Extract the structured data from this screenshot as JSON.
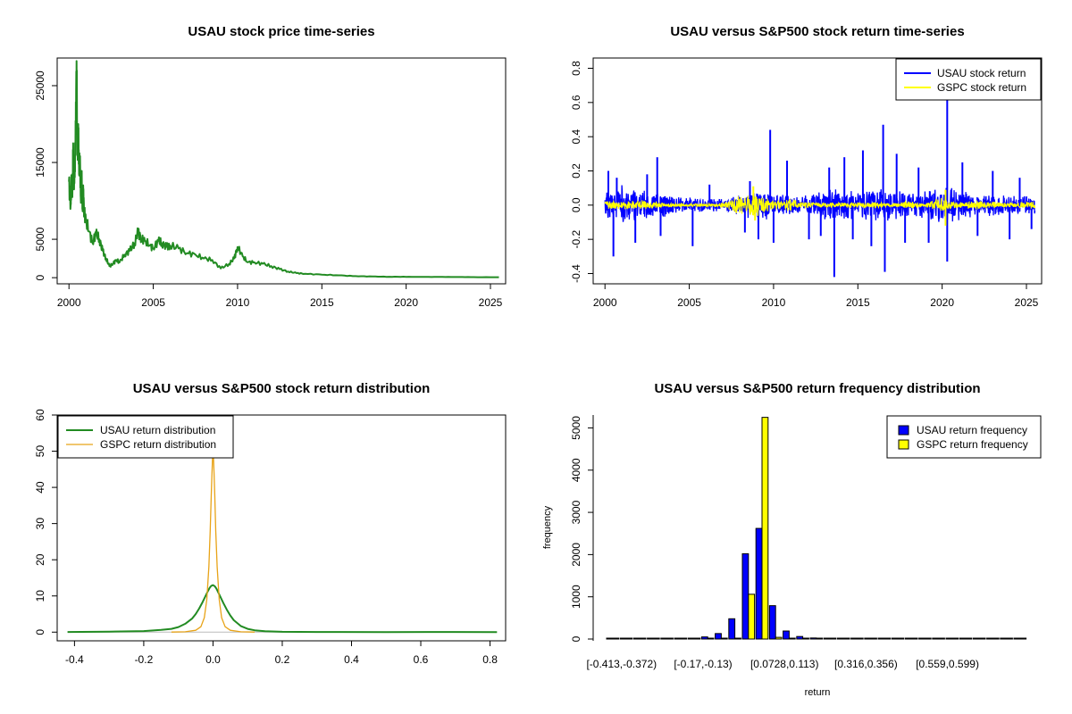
{
  "chart_data": [
    {
      "id": "price",
      "type": "line",
      "title": "USAU stock price time-series",
      "xlabel": "",
      "ylabel": "",
      "xlim": [
        1999.3,
        2025.9
      ],
      "ylim": [
        -800,
        28600
      ],
      "x_ticks": [
        2000,
        2005,
        2010,
        2015,
        2020,
        2025
      ],
      "x_tick_labels": [
        "2000",
        "2005",
        "2010",
        "2015",
        "2020",
        "2025"
      ],
      "y_ticks": [
        0,
        5000,
        15000,
        25000
      ],
      "y_tick_labels": [
        "0",
        "5000",
        "15000",
        "25000"
      ],
      "grid": false,
      "series": [
        {
          "color": "#228B22",
          "x": [
            2000.0,
            2000.1,
            2000.15,
            2000.2,
            2000.25,
            2000.3,
            2000.35,
            2000.4,
            2000.45,
            2000.5,
            2000.55,
            2000.6,
            2000.65,
            2000.7,
            2000.75,
            2000.8,
            2000.85,
            2000.9,
            2001.0,
            2001.2,
            2001.4,
            2001.6,
            2001.8,
            2002.0,
            2002.2,
            2002.4,
            2002.6,
            2002.8,
            2003.0,
            2003.3,
            2003.6,
            2003.9,
            2004.1,
            2004.3,
            2004.5,
            2004.8,
            2005.0,
            2005.3,
            2005.5,
            2005.8,
            2006.0,
            2006.5,
            2007.0,
            2007.5,
            2008.0,
            2008.5,
            2009.0,
            2009.5,
            2009.8,
            2010.0,
            2010.3,
            2010.6,
            2011.0,
            2011.5,
            2012.0,
            2012.5,
            2013.0,
            2013.5,
            2014.0,
            2015.0,
            2016.0,
            2017.0,
            2018.0,
            2019.0,
            2020.0,
            2021.0,
            2022.0,
            2023.0,
            2024.0,
            2025.5
          ],
          "y": [
            12500,
            9500,
            13000,
            10500,
            17500,
            11500,
            15000,
            19000,
            28200,
            16000,
            20000,
            13500,
            15500,
            10500,
            13000,
            9500,
            11000,
            8500,
            7500,
            6000,
            4500,
            5800,
            5000,
            3500,
            2500,
            1500,
            1800,
            2300,
            2000,
            3000,
            3500,
            4500,
            6000,
            5000,
            4800,
            4200,
            3800,
            4800,
            4500,
            4000,
            4200,
            3800,
            3200,
            3000,
            2500,
            2300,
            1200,
            1800,
            2500,
            4000,
            2800,
            2000,
            2000,
            1800,
            1500,
            1100,
            800,
            600,
            500,
            400,
            300,
            200,
            150,
            120,
            110,
            100,
            90,
            80,
            70,
            60
          ]
        }
      ]
    },
    {
      "id": "returns",
      "type": "line",
      "title": "USAU versus S&P500 stock return time-series",
      "xlabel": "",
      "ylabel": "",
      "xlim": [
        1999.3,
        2025.9
      ],
      "ylim": [
        -0.46,
        0.86
      ],
      "x_ticks": [
        2000,
        2005,
        2010,
        2015,
        2020,
        2025
      ],
      "x_tick_labels": [
        "2000",
        "2005",
        "2010",
        "2015",
        "2020",
        "2025"
      ],
      "y_ticks": [
        -0.4,
        -0.2,
        0.0,
        0.2,
        0.4,
        0.6,
        0.8
      ],
      "y_tick_labels": [
        "-0.4",
        "-0.2",
        "0.0",
        "0.2",
        "0.4",
        "0.6",
        "0.8"
      ],
      "grid": false,
      "legend_position": "top-right",
      "series": [
        {
          "name": "USAU stock return",
          "color": "#0000FF",
          "band": [
            [
              2000,
              0.1
            ],
            [
              2001,
              0.13
            ],
            [
              2002,
              0.09
            ],
            [
              2003,
              0.08
            ],
            [
              2004,
              0.07
            ],
            [
              2005,
              0.05
            ],
            [
              2006,
              0.04
            ],
            [
              2007,
              0.04
            ],
            [
              2008,
              0.07
            ],
            [
              2009,
              0.1
            ],
            [
              2010,
              0.08
            ],
            [
              2011,
              0.06
            ],
            [
              2012,
              0.06
            ],
            [
              2013,
              0.1
            ],
            [
              2014,
              0.1
            ],
            [
              2015,
              0.09
            ],
            [
              2016,
              0.11
            ],
            [
              2017,
              0.1
            ],
            [
              2018,
              0.08
            ],
            [
              2019,
              0.09
            ],
            [
              2020,
              0.11
            ],
            [
              2021,
              0.1
            ],
            [
              2022,
              0.07
            ],
            [
              2023,
              0.07
            ],
            [
              2024,
              0.06
            ],
            [
              2025.5,
              0.06
            ]
          ],
          "spikes": [
            [
              2000.2,
              0.2
            ],
            [
              2000.5,
              -0.3
            ],
            [
              2000.7,
              0.16
            ],
            [
              2001.8,
              -0.22
            ],
            [
              2002.5,
              0.18
            ],
            [
              2003.1,
              0.28
            ],
            [
              2003.3,
              -0.18
            ],
            [
              2005.2,
              -0.24
            ],
            [
              2006.2,
              0.12
            ],
            [
              2008.3,
              -0.16
            ],
            [
              2008.6,
              0.14
            ],
            [
              2009.1,
              -0.2
            ],
            [
              2009.8,
              0.44
            ],
            [
              2010.0,
              -0.22
            ],
            [
              2010.8,
              0.26
            ],
            [
              2012.1,
              -0.2
            ],
            [
              2012.8,
              -0.18
            ],
            [
              2013.3,
              0.22
            ],
            [
              2013.6,
              -0.42
            ],
            [
              2014.2,
              0.28
            ],
            [
              2014.7,
              -0.2
            ],
            [
              2015.3,
              0.32
            ],
            [
              2015.8,
              -0.24
            ],
            [
              2016.5,
              0.47
            ],
            [
              2016.6,
              -0.39
            ],
            [
              2017.3,
              0.3
            ],
            [
              2017.8,
              -0.22
            ],
            [
              2018.6,
              0.22
            ],
            [
              2019.2,
              -0.22
            ],
            [
              2020.3,
              0.62
            ],
            [
              2020.3,
              -0.33
            ],
            [
              2021.2,
              0.25
            ],
            [
              2022.1,
              -0.18
            ],
            [
              2023.0,
              0.2
            ],
            [
              2024.0,
              -0.2
            ],
            [
              2024.6,
              0.16
            ],
            [
              2025.3,
              -0.14
            ]
          ]
        },
        {
          "name": "GSPC stock return",
          "color": "#FFFF00",
          "band": [
            [
              2000,
              0.025
            ],
            [
              2001,
              0.03
            ],
            [
              2002,
              0.035
            ],
            [
              2003,
              0.02
            ],
            [
              2004,
              0.012
            ],
            [
              2005,
              0.01
            ],
            [
              2006,
              0.01
            ],
            [
              2007,
              0.015
            ],
            [
              2008,
              0.06
            ],
            [
              2008.9,
              0.08
            ],
            [
              2009.5,
              0.05
            ],
            [
              2010,
              0.03
            ],
            [
              2011,
              0.04
            ],
            [
              2012,
              0.02
            ],
            [
              2013,
              0.015
            ],
            [
              2015,
              0.018
            ],
            [
              2016,
              0.02
            ],
            [
              2017,
              0.01
            ],
            [
              2018,
              0.025
            ],
            [
              2019,
              0.015
            ],
            [
              2020,
              0.05
            ],
            [
              2020.5,
              0.03
            ],
            [
              2021,
              0.018
            ],
            [
              2022,
              0.03
            ],
            [
              2023,
              0.02
            ],
            [
              2024,
              0.015
            ],
            [
              2025.5,
              0.025
            ]
          ],
          "spikes": [
            [
              2008.8,
              0.11
            ],
            [
              2008.9,
              -0.09
            ],
            [
              2020.2,
              0.09
            ],
            [
              2020.2,
              -0.12
            ]
          ]
        }
      ]
    },
    {
      "id": "density",
      "type": "line",
      "title": "USAU versus S&P500 stock return distribution",
      "xlabel": "",
      "ylabel": "",
      "xlim": [
        -0.45,
        0.845
      ],
      "ylim": [
        -2.4,
        60
      ],
      "x_ticks": [
        -0.4,
        -0.2,
        0.0,
        0.2,
        0.4,
        0.6,
        0.8
      ],
      "x_tick_labels": [
        "-0.4",
        "-0.2",
        "0.0",
        "0.2",
        "0.4",
        "0.6",
        "0.8"
      ],
      "y_ticks": [
        0,
        10,
        20,
        30,
        40,
        50,
        60
      ],
      "y_tick_labels": [
        "0",
        "10",
        "20",
        "30",
        "40",
        "50",
        "60"
      ],
      "grid": false,
      "legend_position": "top-left",
      "series": [
        {
          "name": "USAU return distribution",
          "color": "#228B22",
          "x": [
            -0.42,
            -0.3,
            -0.2,
            -0.15,
            -0.12,
            -0.1,
            -0.08,
            -0.06,
            -0.05,
            -0.04,
            -0.03,
            -0.02,
            -0.015,
            -0.01,
            -0.005,
            0.0,
            0.005,
            0.01,
            0.015,
            0.02,
            0.03,
            0.04,
            0.05,
            0.06,
            0.08,
            0.1,
            0.12,
            0.15,
            0.2,
            0.3,
            0.5,
            0.62,
            0.82
          ],
          "y": [
            0.05,
            0.15,
            0.3,
            0.6,
            0.9,
            1.4,
            2.3,
            3.8,
            5.0,
            6.5,
            8.3,
            10.3,
            11.3,
            12.2,
            12.8,
            13.0,
            12.7,
            12.0,
            11.0,
            10.0,
            8.0,
            6.2,
            4.6,
            3.3,
            1.7,
            0.9,
            0.5,
            0.25,
            0.1,
            0.05,
            0.02,
            0.05,
            0.02
          ]
        },
        {
          "name": "GSPC return distribution",
          "color": "#E8A317",
          "x": [
            -0.12,
            -0.08,
            -0.05,
            -0.035,
            -0.025,
            -0.018,
            -0.012,
            -0.008,
            -0.005,
            -0.003,
            -0.0015,
            0.0,
            0.0015,
            0.003,
            0.005,
            0.008,
            0.012,
            0.018,
            0.025,
            0.035,
            0.05,
            0.08,
            0.12
          ],
          "y": [
            0.02,
            0.1,
            0.5,
            1.5,
            4.0,
            9.0,
            18.0,
            28.0,
            38.0,
            44.0,
            48.0,
            50.0,
            48.0,
            44.0,
            38.0,
            28.0,
            18.0,
            9.0,
            4.0,
            1.5,
            0.5,
            0.1,
            0.02
          ]
        }
      ]
    },
    {
      "id": "frequency",
      "type": "bar",
      "title": "USAU versus S&P500 return frequency distribution",
      "xlabel": "return",
      "ylabel": "frequency",
      "ylim": [
        0,
        5200
      ],
      "y_ticks": [
        0,
        1000,
        2000,
        3000,
        4000,
        5000
      ],
      "y_tick_labels": [
        "0",
        "1000",
        "2000",
        "3000",
        "4000",
        "5000"
      ],
      "x_tick_labels_shown": [
        {
          "bin": 0,
          "label": "[-0.413,-0.372)"
        },
        {
          "bin": 6,
          "label": "[-0.17,-0.13)"
        },
        {
          "bin": 12,
          "label": "[0.0728,0.113)"
        },
        {
          "bin": 18,
          "label": "[0.316,0.356)"
        },
        {
          "bin": 24,
          "label": "[0.559,0.599)"
        }
      ],
      "grid": false,
      "legend_position": "top-right",
      "bin_count": 31,
      "series": [
        {
          "name": "USAU return frequency",
          "color": "#0000FF",
          "values": [
            1,
            1,
            2,
            3,
            6,
            10,
            20,
            50,
            130,
            480,
            2020,
            2620,
            790,
            190,
            60,
            25,
            12,
            8,
            4,
            3,
            2,
            1,
            1,
            1,
            1,
            1,
            1,
            1,
            1,
            1,
            1
          ]
        },
        {
          "name": "GSPC return frequency",
          "color": "#FFFF00",
          "values": [
            0,
            0,
            0,
            0,
            0,
            0,
            0,
            0,
            0,
            1,
            1060,
            5250,
            40,
            1,
            0,
            0,
            0,
            0,
            0,
            0,
            0,
            0,
            0,
            0,
            0,
            0,
            0,
            0,
            0,
            0,
            0
          ]
        }
      ]
    }
  ]
}
